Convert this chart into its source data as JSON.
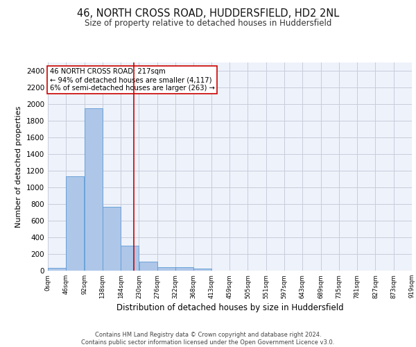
{
  "title_line1": "46, NORTH CROSS ROAD, HUDDERSFIELD, HD2 2NL",
  "title_line2": "Size of property relative to detached houses in Huddersfield",
  "xlabel": "Distribution of detached houses by size in Huddersfield",
  "ylabel": "Number of detached properties",
  "footnote_line1": "Contains HM Land Registry data © Crown copyright and database right 2024.",
  "footnote_line2": "Contains public sector information licensed under the Open Government Licence v3.0.",
  "annotation_line1": "46 NORTH CROSS ROAD: 217sqm",
  "annotation_line2": "← 94% of detached houses are smaller (4,117)",
  "annotation_line3": "6% of semi-detached houses are larger (263) →",
  "property_sqm": 217,
  "bar_edges": [
    0,
    46,
    92,
    138,
    184,
    230,
    276,
    322,
    368,
    413,
    459,
    505,
    551,
    597,
    643,
    689,
    735,
    781,
    827,
    873,
    919
  ],
  "bar_heights": [
    35,
    1130,
    1950,
    770,
    300,
    105,
    45,
    40,
    25,
    0,
    0,
    0,
    0,
    0,
    0,
    0,
    0,
    0,
    0,
    0
  ],
  "bar_color": "#AEC6E8",
  "bar_edge_color": "#5B9BD5",
  "vline_color": "#CC0000",
  "vline_x": 217,
  "annotation_box_color": "#CC0000",
  "annotation_box_fill": "white",
  "background_color": "#EEF2FA",
  "grid_color": "#C8CCDC",
  "ylim": [
    0,
    2500
  ],
  "yticks": [
    0,
    200,
    400,
    600,
    800,
    1000,
    1200,
    1400,
    1600,
    1800,
    2000,
    2200,
    2400
  ],
  "tick_labels": [
    "0sqm",
    "46sqm",
    "92sqm",
    "138sqm",
    "184sqm",
    "230sqm",
    "276sqm",
    "322sqm",
    "368sqm",
    "413sqm",
    "459sqm",
    "505sqm",
    "551sqm",
    "597sqm",
    "643sqm",
    "689sqm",
    "735sqm",
    "781sqm",
    "827sqm",
    "873sqm",
    "919sqm"
  ]
}
